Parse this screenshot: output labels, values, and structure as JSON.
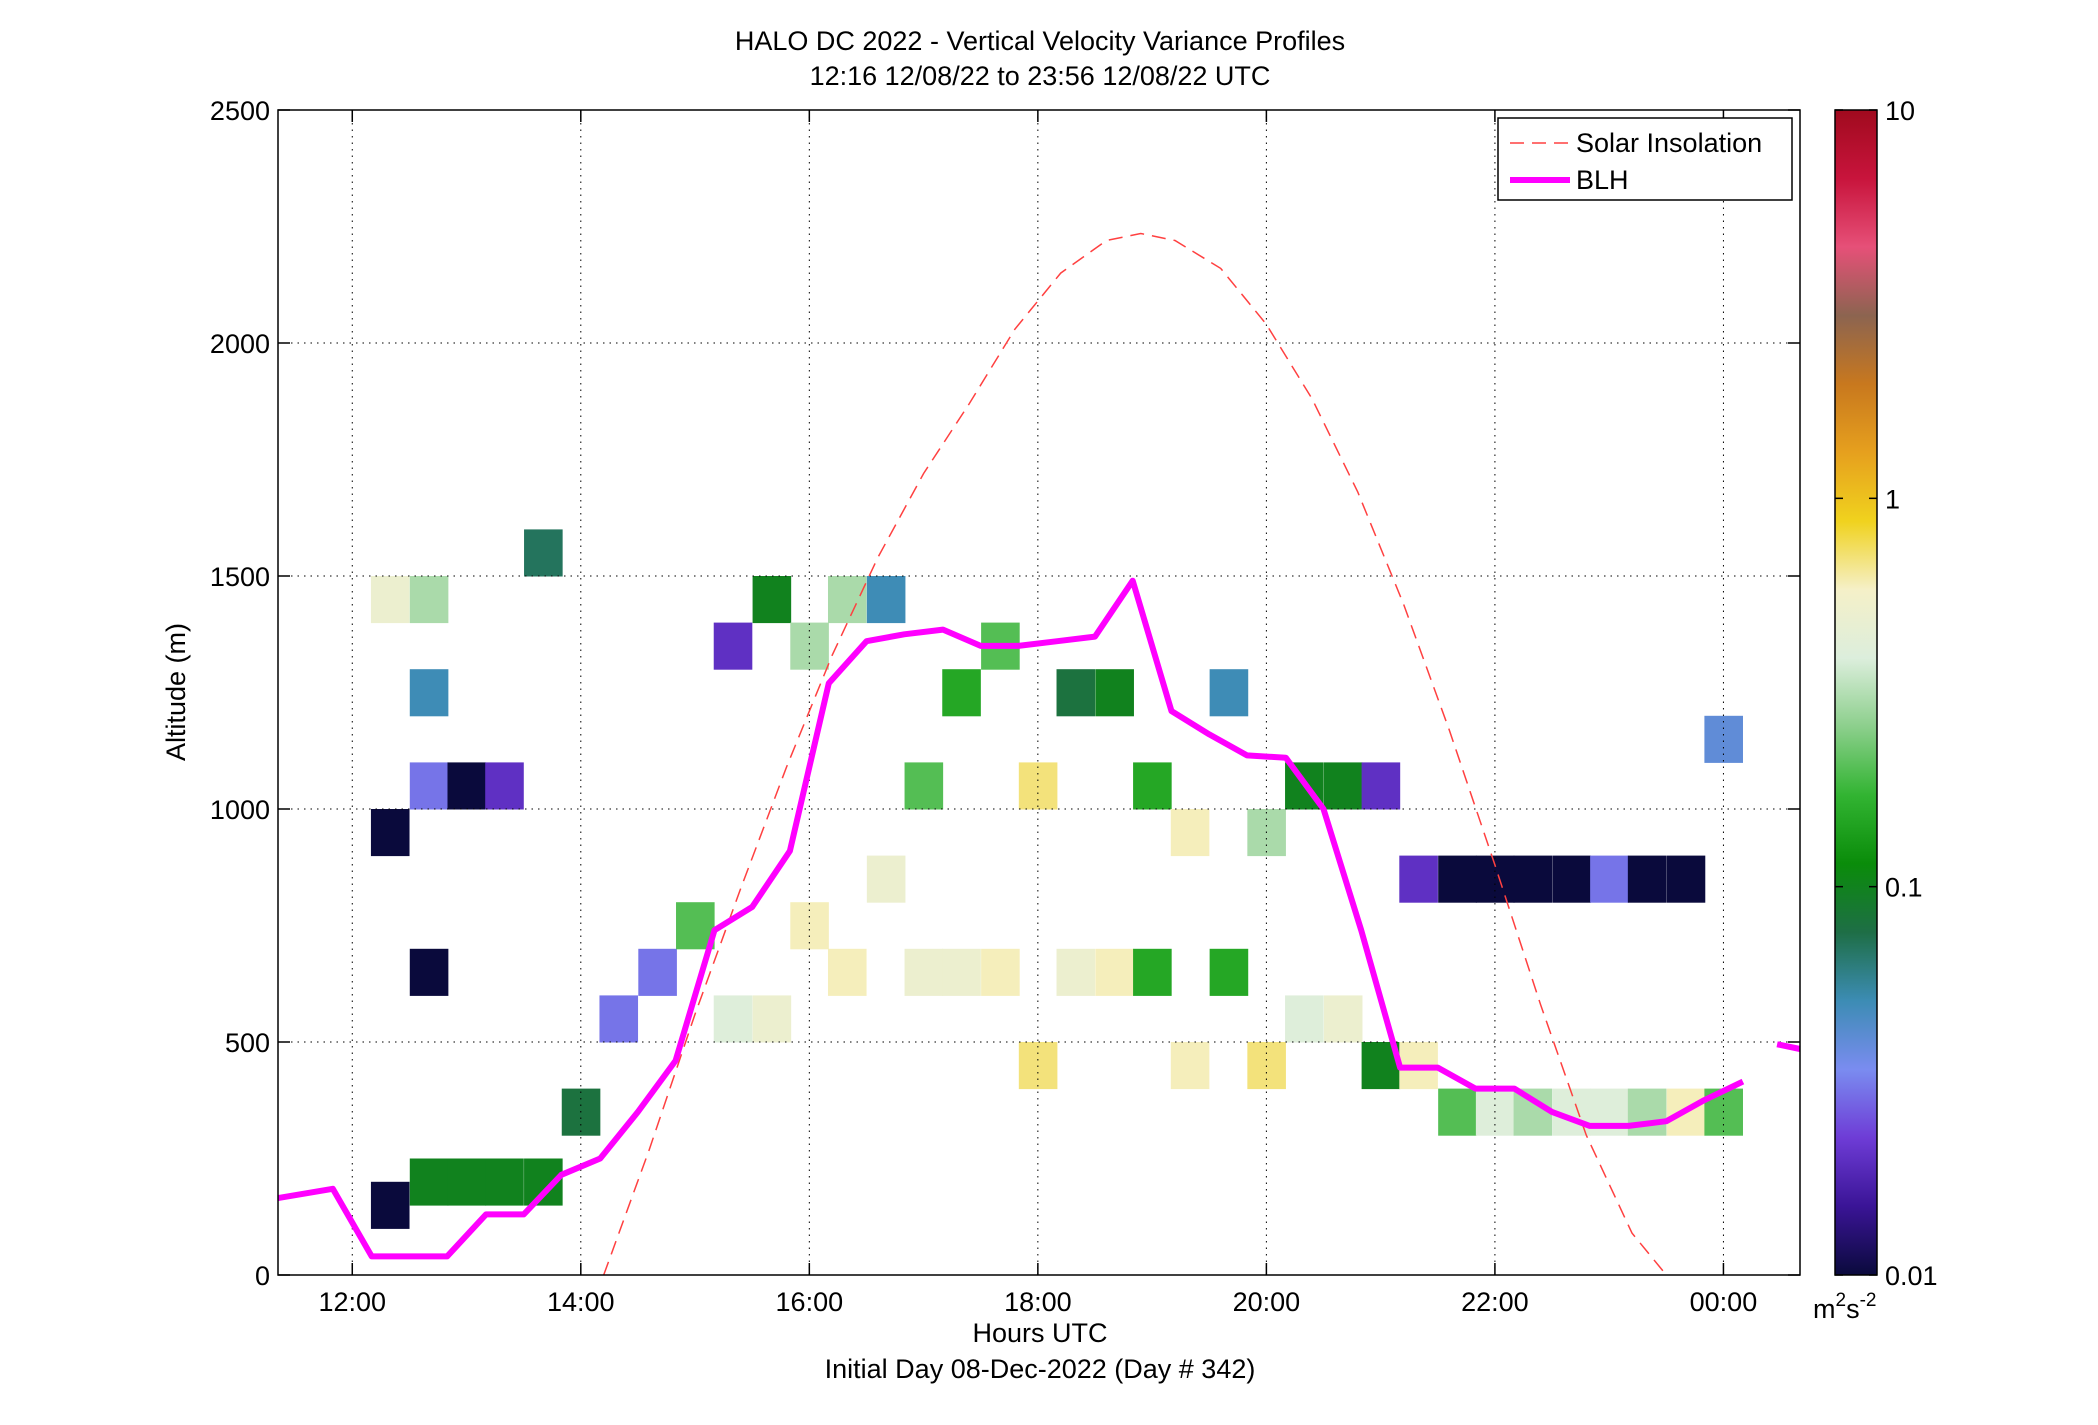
{
  "chart_data": {
    "type": "heatmap",
    "title": "HALO DC 2022 - Vertical Velocity Variance Profiles",
    "subtitle": "12:16 12/08/22 to 23:56 12/08/22  UTC",
    "xlabel": "Hours UTC",
    "xlabel2": "Initial Day 08-Dec-2022 (Day # 342)",
    "ylabel": "Altitude (m)",
    "xlim": [
      11.35,
      24.67
    ],
    "ylim": [
      0,
      2500
    ],
    "x_ticks": [
      12,
      14,
      16,
      18,
      20,
      22,
      24
    ],
    "x_tick_labels": [
      "12:00",
      "14:00",
      "16:00",
      "18:00",
      "20:00",
      "22:00",
      "00:00"
    ],
    "y_ticks": [
      0,
      500,
      1000,
      1500,
      2000,
      2500
    ],
    "y_tick_labels": [
      "0",
      "500",
      "1000",
      "1500",
      "2000",
      "2500"
    ],
    "grid": true,
    "legend_position": "top-right",
    "colorbar": {
      "scale": "log",
      "min": 0.01,
      "max": 10,
      "ticks": [
        0.01,
        0.1,
        1,
        10
      ],
      "tick_labels": [
        "0.01",
        "0.1",
        "1",
        "10"
      ],
      "unit": "m",
      "unit_sup1": "2",
      "unit_mid": "s",
      "unit_sup2": "-2",
      "colors": [
        "#0a0a3c",
        "#3a1496",
        "#6e3cd6",
        "#7a8cf0",
        "#3c8cb4",
        "#1e6e46",
        "#0a8c0a",
        "#32b432",
        "#8ccf8c",
        "#dceedc",
        "#f5f0c8",
        "#f0d21e",
        "#e6a01e",
        "#c8781e",
        "#8c6450",
        "#e65078",
        "#c8143c",
        "#a00a1e"
      ]
    },
    "series": [
      {
        "name": "Solar Insolation",
        "style": "dashed",
        "color": "#ff4040",
        "x": [
          14.2,
          14.6,
          15.0,
          15.4,
          15.8,
          16.2,
          16.6,
          17.0,
          17.4,
          17.8,
          18.2,
          18.6,
          18.9,
          19.2,
          19.6,
          20.0,
          20.4,
          20.8,
          21.2,
          21.6,
          22.0,
          22.4,
          22.8,
          23.2,
          23.5
        ],
        "y": [
          0,
          270,
          560,
          830,
          1090,
          1330,
          1540,
          1720,
          1870,
          2030,
          2150,
          2220,
          2235,
          2220,
          2160,
          2040,
          1880,
          1680,
          1440,
          1170,
          880,
          580,
          300,
          90,
          0
        ]
      },
      {
        "name": "BLH",
        "style": "solid",
        "color": "#ff00ff",
        "x": [
          11.35,
          11.83,
          12.17,
          12.5,
          12.83,
          13.17,
          13.5,
          13.83,
          14.17,
          14.5,
          14.83,
          15.17,
          15.5,
          15.83,
          16.17,
          16.5,
          16.83,
          17.17,
          17.5,
          17.83,
          18.17,
          18.5,
          18.83,
          19.17,
          19.5,
          19.83,
          20.17,
          20.5,
          20.83,
          21.17,
          21.5,
          21.83,
          22.17,
          22.5,
          22.83,
          23.17,
          23.5,
          23.83,
          24.17
        ],
        "y": [
          165,
          185,
          40,
          40,
          40,
          130,
          130,
          215,
          250,
          350,
          460,
          740,
          790,
          910,
          1270,
          1360,
          1375,
          1385,
          1350,
          1350,
          1360,
          1370,
          1490,
          1210,
          1160,
          1115,
          1110,
          1000,
          740,
          445,
          445,
          400,
          400,
          350,
          320,
          320,
          330,
          375,
          415
        ]
      },
      {
        "name": "",
        "style": "solid",
        "color": "#ff00ff",
        "x": [
          24.47,
          24.67
        ],
        "y": [
          495,
          485
        ]
      }
    ],
    "heatmap_cells": [
      [
        12.33,
        100,
        0.01
      ],
      [
        12.33,
        900,
        0.01
      ],
      [
        12.33,
        1400,
        0.5
      ],
      [
        12.67,
        1400,
        0.3
      ],
      [
        12.67,
        1200,
        0.05
      ],
      [
        12.67,
        1000,
        0.03
      ],
      [
        12.67,
        600,
        0.01
      ],
      [
        12.67,
        150,
        0.1
      ],
      [
        13.0,
        1000,
        0.01
      ],
      [
        13.0,
        150,
        0.1
      ],
      [
        13.33,
        1000,
        0.02
      ],
      [
        13.33,
        150,
        0.1
      ],
      [
        13.67,
        1500,
        0.07
      ],
      [
        13.67,
        150,
        0.1
      ],
      [
        14.0,
        300,
        0.08
      ],
      [
        14.33,
        500,
        0.03
      ],
      [
        14.67,
        600,
        0.03
      ],
      [
        15.0,
        700,
        0.2
      ],
      [
        15.33,
        1300,
        0.02
      ],
      [
        15.33,
        500,
        0.4
      ],
      [
        15.67,
        1400,
        0.1
      ],
      [
        15.67,
        500,
        0.5
      ],
      [
        16.0,
        1300,
        0.3
      ],
      [
        16.0,
        700,
        0.6
      ],
      [
        16.33,
        1400,
        0.3
      ],
      [
        16.33,
        600,
        0.6
      ],
      [
        16.67,
        1400,
        0.05
      ],
      [
        16.67,
        800,
        0.5
      ],
      [
        17.0,
        1000,
        0.2
      ],
      [
        17.0,
        600,
        0.5
      ],
      [
        17.33,
        1200,
        0.15
      ],
      [
        17.33,
        600,
        0.5
      ],
      [
        17.67,
        1300,
        0.2
      ],
      [
        17.67,
        600,
        0.6
      ],
      [
        18.0,
        1000,
        0.7
      ],
      [
        18.0,
        400,
        0.7
      ],
      [
        18.33,
        1200,
        0.08
      ],
      [
        18.33,
        600,
        0.5
      ],
      [
        18.67,
        1200,
        0.1
      ],
      [
        18.67,
        600,
        0.6
      ],
      [
        19.0,
        1000,
        0.15
      ],
      [
        19.0,
        600,
        0.15
      ],
      [
        19.33,
        900,
        0.6
      ],
      [
        19.33,
        400,
        0.6
      ],
      [
        19.67,
        1200,
        0.05
      ],
      [
        19.67,
        600,
        0.15
      ],
      [
        20.0,
        900,
        0.3
      ],
      [
        20.0,
        400,
        0.7
      ],
      [
        20.33,
        1000,
        0.1
      ],
      [
        20.33,
        500,
        0.4
      ],
      [
        20.67,
        1000,
        0.1
      ],
      [
        20.67,
        500,
        0.5
      ],
      [
        21.0,
        1000,
        0.02
      ],
      [
        21.0,
        400,
        0.1
      ],
      [
        21.33,
        800,
        0.02
      ],
      [
        21.33,
        400,
        0.6
      ],
      [
        21.67,
        800,
        0.01
      ],
      [
        21.67,
        300,
        0.2
      ],
      [
        22.0,
        800,
        0.01
      ],
      [
        22.0,
        300,
        0.4
      ],
      [
        22.33,
        800,
        0.01
      ],
      [
        22.33,
        300,
        0.3
      ],
      [
        22.67,
        800,
        0.01
      ],
      [
        22.67,
        300,
        0.4
      ],
      [
        23.0,
        800,
        0.03
      ],
      [
        23.0,
        300,
        0.4
      ],
      [
        23.33,
        800,
        0.01
      ],
      [
        23.33,
        300,
        0.3
      ],
      [
        23.67,
        800,
        0.01
      ],
      [
        23.67,
        300,
        0.6
      ],
      [
        24.0,
        1100,
        0.04
      ],
      [
        24.0,
        300,
        0.2
      ]
    ]
  }
}
